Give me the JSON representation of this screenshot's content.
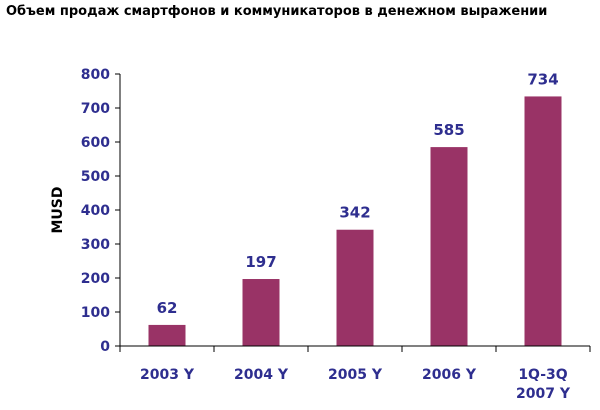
{
  "colors": {
    "bar": "#993366",
    "axis_text": "#2e2e8f",
    "axis_line": "#000000"
  },
  "chart_data": {
    "type": "bar",
    "title": "Объем продаж смартфонов и коммуникаторов в денежном выражении",
    "ylabel": "MUSD",
    "xlabel": "",
    "ylim": [
      0,
      800
    ],
    "yticks": [
      0,
      100,
      200,
      300,
      400,
      500,
      600,
      700,
      800
    ],
    "categories": [
      [
        "2003 Y"
      ],
      [
        "2004 Y"
      ],
      [
        "2005 Y"
      ],
      [
        "2006 Y"
      ],
      [
        "1Q-3Q",
        "2007 Y"
      ]
    ],
    "values": [
      62,
      197,
      342,
      585,
      734
    ],
    "data_labels": [
      "62",
      "197",
      "342",
      "585",
      "734"
    ],
    "grid": false,
    "legend": "none"
  }
}
